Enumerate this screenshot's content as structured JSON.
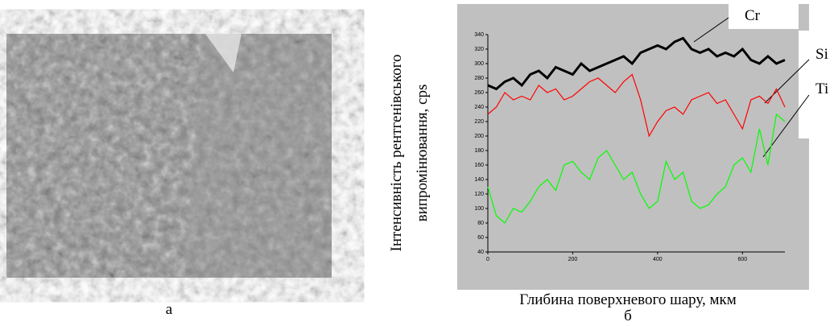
{
  "image_caption": "а",
  "chart_data": {
    "type": "line",
    "caption": "б",
    "y_label_lines": [
      "Інтенсивність рентгенівського",
      "випромінювання, cps"
    ],
    "x_label": "Глибина поверхневого шару, мкм",
    "x": [
      0,
      20,
      40,
      60,
      80,
      100,
      120,
      140,
      160,
      180,
      200,
      220,
      240,
      260,
      280,
      300,
      320,
      340,
      360,
      380,
      400,
      420,
      440,
      460,
      480,
      500,
      520,
      540,
      560,
      580,
      600,
      620,
      640,
      660,
      680,
      700
    ],
    "series": [
      {
        "name": "Cr",
        "color": "#000000",
        "values": [
          270,
          265,
          275,
          280,
          270,
          285,
          290,
          280,
          295,
          290,
          285,
          300,
          290,
          295,
          300,
          305,
          310,
          300,
          315,
          320,
          325,
          320,
          330,
          335,
          320,
          315,
          320,
          310,
          315,
          310,
          320,
          305,
          300,
          310,
          300,
          305
        ]
      },
      {
        "name": "Si",
        "color": "#ff0000",
        "values": [
          230,
          240,
          260,
          250,
          255,
          250,
          270,
          260,
          265,
          250,
          255,
          265,
          275,
          280,
          270,
          260,
          275,
          285,
          250,
          200,
          220,
          235,
          240,
          230,
          250,
          255,
          260,
          245,
          250,
          230,
          210,
          250,
          255,
          245,
          265,
          240
        ]
      },
      {
        "name": "Ti",
        "color": "#00ff00",
        "values": [
          130,
          90,
          80,
          100,
          95,
          110,
          130,
          140,
          125,
          160,
          165,
          150,
          140,
          170,
          180,
          160,
          140,
          150,
          120,
          100,
          110,
          165,
          140,
          150,
          110,
          100,
          105,
          120,
          130,
          160,
          170,
          150,
          210,
          160,
          230,
          220
        ]
      }
    ],
    "xlim": [
      0,
      700
    ],
    "ylim": [
      40,
      340
    ],
    "xticks": [
      0,
      200,
      400,
      600
    ],
    "yticks": [
      40,
      60,
      80,
      100,
      120,
      140,
      160,
      180,
      200,
      220,
      240,
      260,
      280,
      300,
      320,
      340
    ]
  }
}
